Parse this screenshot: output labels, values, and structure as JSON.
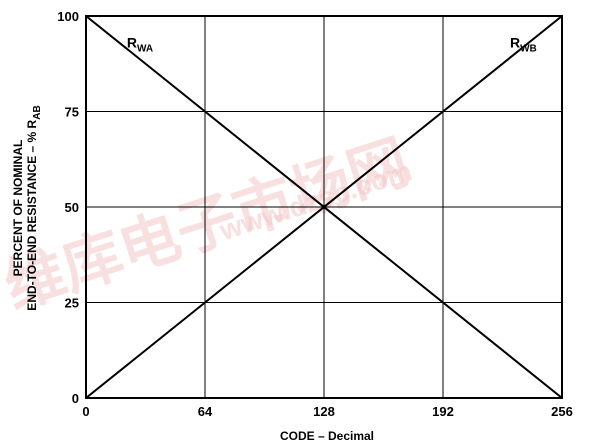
{
  "chart_data": {
    "type": "line",
    "title": "",
    "xlabel": "CODE – Decimal",
    "ylabel": {
      "line1": "PERCENT OF NOMINAL",
      "line2_prefix": "END-TO-END RESISTANCE – % R",
      "line2_sub": "AB"
    },
    "xlim": [
      0,
      256
    ],
    "ylim": [
      0,
      100
    ],
    "x_ticks": [
      0,
      64,
      128,
      192,
      256
    ],
    "y_ticks": [
      0,
      25,
      50,
      75,
      100
    ],
    "grid": true,
    "series": [
      {
        "name": "RWA",
        "label_main": "R",
        "label_sub": "WA",
        "x": [
          0,
          256
        ],
        "y": [
          100,
          0
        ]
      },
      {
        "name": "RWB",
        "label_main": "R",
        "label_sub": "WB",
        "x": [
          0,
          256
        ],
        "y": [
          0,
          100
        ]
      }
    ],
    "series_label_anchor": [
      {
        "x": 22,
        "y": 93
      },
      {
        "x": 228,
        "y": 93
      }
    ]
  },
  "watermark": {
    "text1": "维库电子市场网",
    "text2": "www.dzsc.com"
  },
  "colors": {
    "line": "#000000",
    "grid": "#000000",
    "watermark": "#f3c8c8"
  }
}
